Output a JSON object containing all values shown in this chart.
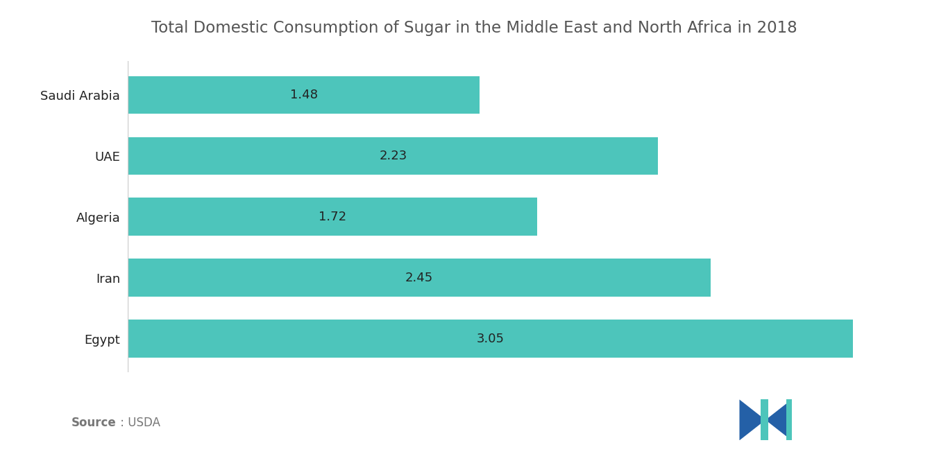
{
  "title": "Total Domestic Consumption of Sugar in the Middle East and North Africa in 2018",
  "categories": [
    "Saudi Arabia",
    "UAE",
    "Algeria",
    "Iran",
    "Egypt"
  ],
  "values": [
    1.48,
    2.23,
    1.72,
    2.45,
    3.05
  ],
  "bar_color": "#4DC5BB",
  "label_color": "#222222",
  "title_color": "#555555",
  "bg_color": "#ffffff",
  "xlim_max": 3.35,
  "bar_height": 0.62,
  "title_fontsize": 16.5,
  "label_fontsize": 13,
  "ytick_fontsize": 13,
  "source_fontsize": 12,
  "source_color": "#777777",
  "axis_line_color": "#cccccc",
  "logo_dark": "#2460A7",
  "logo_teal": "#4DC5BB"
}
